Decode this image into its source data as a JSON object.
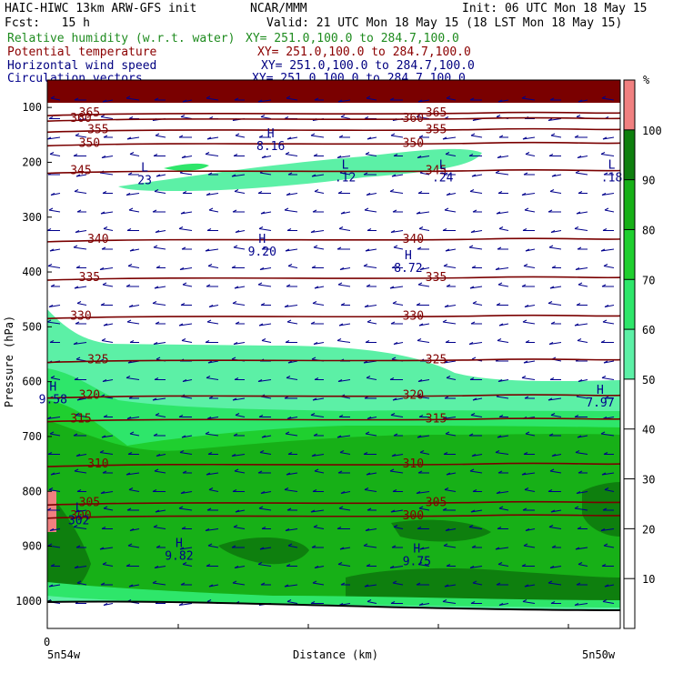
{
  "header": {
    "line1_left": "HAIC-HIWC 13km ARW-GFS init",
    "line1_mid": "NCAR/MMM",
    "line1_right": "Init: 06 UTC Mon 18 May 15",
    "line2_left": "Fcst:   15 h",
    "line2_right": "Valid: 21 UTC Mon 18 May 15 (18 LST Mon 18 May 15)",
    "fields": [
      {
        "name": "Relative humidity (w.r.t. water)",
        "xy": "XY= 251.0,100.0 to 284.7,100.0",
        "color": "#1e8b1e"
      },
      {
        "name": "Potential temperature",
        "xy": "XY= 251.0,100.0 to 284.7,100.0",
        "color": "#8b0000"
      },
      {
        "name": "Horizontal wind speed",
        "xy": "XY= 251.0,100.0 to 284.7,100.0",
        "color": "#000080"
      },
      {
        "name": "Circulation vectors",
        "xy": "XY= 251.0,100.0 to 284.7,100.0",
        "color": "#00008b"
      }
    ]
  },
  "chart_data": {
    "type": "heatmap",
    "ylabel": "Pressure (hPa)",
    "xlabel": "Distance (km)",
    "x_start_label": "5n54w",
    "x_end_label": "5n50w",
    "x_zero_label": "0",
    "ylim": [
      50,
      1050
    ],
    "y_ticks": [
      100,
      200,
      300,
      400,
      500,
      600,
      700,
      800,
      900,
      1000
    ],
    "colorbar": {
      "unit": "%",
      "ticks": [
        10,
        20,
        30,
        40,
        50,
        60,
        70,
        80,
        90,
        100
      ],
      "bands": [
        {
          "range": [
            50,
            60
          ],
          "color": "#5cf0a6"
        },
        {
          "range": [
            60,
            70
          ],
          "color": "#2ee66a"
        },
        {
          "range": [
            70,
            80
          ],
          "color": "#1fcf2f"
        },
        {
          "range": [
            80,
            90
          ],
          "color": "#17b017"
        },
        {
          "range": [
            90,
            100
          ],
          "color": "#0e7f0e"
        },
        {
          "range": [
            100,
            110
          ],
          "color": "#f08080"
        }
      ]
    },
    "theta_contours": [
      {
        "value": "300",
        "p": 844
      },
      {
        "value": "305",
        "p": 820
      },
      {
        "value": "310",
        "p": 750
      },
      {
        "value": "315",
        "p": 668
      },
      {
        "value": "320",
        "p": 625
      },
      {
        "value": "325",
        "p": 560
      },
      {
        "value": "330",
        "p": 480
      },
      {
        "value": "335",
        "p": 410
      },
      {
        "value": "340",
        "p": 340
      },
      {
        "value": "345",
        "p": 215
      },
      {
        "value": "350",
        "p": 165
      },
      {
        "value": "355",
        "p": 140
      },
      {
        "value": "360",
        "p": 120
      },
      {
        "value": "365",
        "p": 110
      }
    ],
    "extrema_labels": [
      {
        "kind": "H",
        "value": "8.16",
        "x": 0.39,
        "p": 168
      },
      {
        "kind": "L",
        "value": "23",
        "x": 0.17,
        "p": 230
      },
      {
        "kind": "L",
        "value": ".12",
        "x": 0.52,
        "p": 225
      },
      {
        "kind": "L",
        "value": ".24",
        "x": 0.69,
        "p": 225
      },
      {
        "kind": "L",
        "value": ".18",
        "x": 0.985,
        "p": 225
      },
      {
        "kind": "H",
        "value": "9.20",
        "x": 0.375,
        "p": 360
      },
      {
        "kind": "H",
        "value": "8.72",
        "x": 0.63,
        "p": 390
      },
      {
        "kind": "H",
        "value": "9.58",
        "x": 0.01,
        "p": 630
      },
      {
        "kind": "H",
        "value": "7.97",
        "x": 0.965,
        "p": 635
      },
      {
        "kind": "L",
        "value": "302",
        "x": 0.055,
        "p": 850
      },
      {
        "kind": "H",
        "value": "9.82",
        "x": 0.23,
        "p": 915
      },
      {
        "kind": "H",
        "value": "9.75",
        "x": 0.645,
        "p": 925
      }
    ]
  }
}
